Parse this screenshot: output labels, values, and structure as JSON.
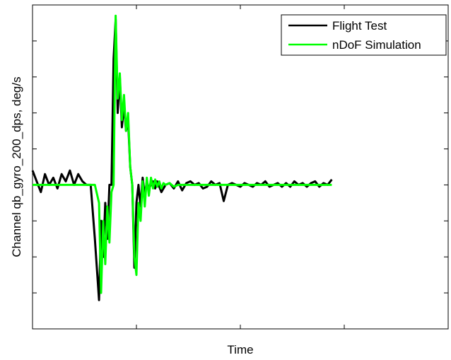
{
  "chart_data": {
    "type": "line",
    "title": "",
    "xlabel": "Time",
    "ylabel": "Channel qb_gyro_200_dps, deg/s",
    "x_tick_labels_shown": false,
    "y_tick_labels_shown": false,
    "xlim": [
      0,
      1
    ],
    "ylim": [
      -4,
      5
    ],
    "grid": false,
    "legend_position": "top-right",
    "colors": {
      "Flight Test": "#000000",
      "nDoF Simulation": "#00ff00"
    },
    "series": [
      {
        "name": "Flight Test",
        "x": [
          0,
          0.01,
          0.02,
          0.03,
          0.04,
          0.05,
          0.06,
          0.07,
          0.08,
          0.09,
          0.1,
          0.11,
          0.12,
          0.13,
          0.14,
          0.15,
          0.16,
          0.165,
          0.17,
          0.175,
          0.18,
          0.185,
          0.19,
          0.195,
          0.2,
          0.205,
          0.21,
          0.215,
          0.22,
          0.225,
          0.23,
          0.235,
          0.24,
          0.245,
          0.25,
          0.255,
          0.26,
          0.265,
          0.27,
          0.275,
          0.28,
          0.285,
          0.29,
          0.295,
          0.3,
          0.31,
          0.32,
          0.33,
          0.34,
          0.35,
          0.36,
          0.37,
          0.38,
          0.39,
          0.4,
          0.41,
          0.42,
          0.43,
          0.44,
          0.45,
          0.46,
          0.47,
          0.48,
          0.49,
          0.5,
          0.51,
          0.52,
          0.53,
          0.54,
          0.55,
          0.56,
          0.57,
          0.58,
          0.59,
          0.6,
          0.61,
          0.62,
          0.63,
          0.64,
          0.65,
          0.66,
          0.67,
          0.68,
          0.69,
          0.7,
          0.71,
          0.72
        ],
        "y": [
          0.4,
          0.1,
          -0.2,
          0.3,
          0.0,
          0.2,
          -0.1,
          0.3,
          0.1,
          0.4,
          0.0,
          0.3,
          0.1,
          0.0,
          0.0,
          -1.5,
          -3.2,
          -1.0,
          -2.0,
          -0.5,
          -1.5,
          0.0,
          0.0,
          3.5,
          4.6,
          2.0,
          3.0,
          1.6,
          2.2,
          1.5,
          1.8,
          0.5,
          0.0,
          -2.3,
          -0.5,
          0.0,
          -0.6,
          0.2,
          -0.3,
          0.1,
          -0.1,
          0.0,
          0.1,
          -0.1,
          0.1,
          -0.2,
          0.0,
          0.05,
          -0.1,
          0.1,
          -0.15,
          0.05,
          0.1,
          0.0,
          0.05,
          -0.1,
          -0.05,
          0.1,
          0.0,
          0.05,
          -0.45,
          0.0,
          0.05,
          0.0,
          -0.05,
          0.05,
          0.0,
          -0.05,
          0.05,
          0.0,
          0.1,
          -0.05,
          0.0,
          0.05,
          -0.05,
          0.05,
          -0.05,
          0.1,
          0.0,
          0.05,
          -0.05,
          0.05,
          0.1,
          -0.05,
          0.05,
          0.0,
          0.15
        ]
      },
      {
        "name": "nDoF Simulation",
        "x": [
          0,
          0.05,
          0.1,
          0.15,
          0.16,
          0.165,
          0.17,
          0.175,
          0.18,
          0.185,
          0.19,
          0.195,
          0.2,
          0.205,
          0.21,
          0.215,
          0.22,
          0.225,
          0.23,
          0.235,
          0.24,
          0.245,
          0.25,
          0.255,
          0.26,
          0.265,
          0.27,
          0.275,
          0.28,
          0.285,
          0.29,
          0.295,
          0.3,
          0.305,
          0.31,
          0.315,
          0.32,
          0.33,
          0.34,
          0.35,
          0.36,
          0.38,
          0.4,
          0.45,
          0.5,
          0.55,
          0.6,
          0.65,
          0.72
        ],
        "y": [
          0.0,
          0.0,
          0.0,
          0.0,
          -0.5,
          -3.0,
          -1.0,
          -2.2,
          -0.6,
          -1.6,
          -0.2,
          0.0,
          4.7,
          2.4,
          3.1,
          1.8,
          2.5,
          1.5,
          2.0,
          0.5,
          0.0,
          -2.0,
          -2.5,
          -0.5,
          -1.0,
          0.1,
          -0.6,
          0.2,
          -0.3,
          0.2,
          -0.1,
          0.15,
          -0.05,
          0.1,
          -0.1,
          0.05,
          0.0,
          0.05,
          -0.05,
          0.0,
          0.0,
          0.0,
          0.0,
          0.0,
          0.0,
          0.0,
          0.0,
          0.0,
          0.0
        ]
      }
    ]
  }
}
